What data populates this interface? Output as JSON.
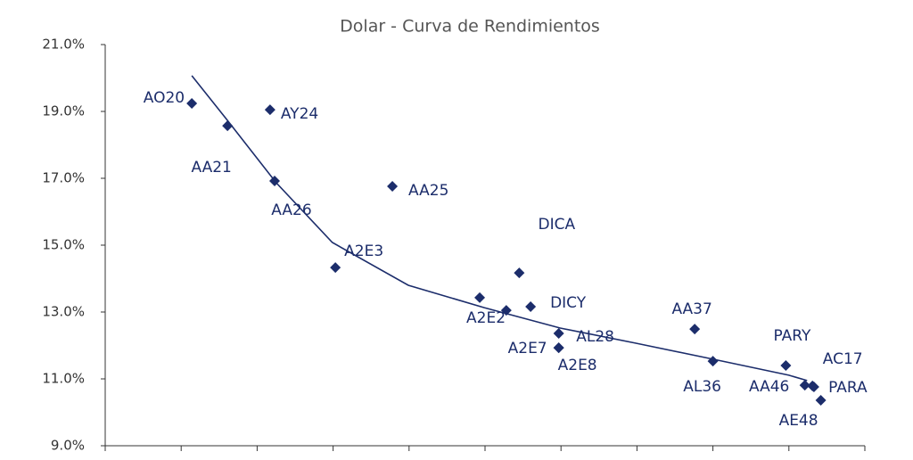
{
  "chart_data": {
    "type": "scatter",
    "title": "Dolar - Curva de Rendimientos",
    "color": "#1c2d6b",
    "points": [
      {
        "name": "AO20",
        "x": 1.14,
        "y": 19.24
      },
      {
        "name": "AA21",
        "x": 1.61,
        "y": 18.57
      },
      {
        "name": "AY24",
        "x": 2.17,
        "y": 19.05
      },
      {
        "name": "AA26",
        "x": 2.23,
        "y": 16.92
      },
      {
        "name": "AA25",
        "x": 3.78,
        "y": 16.76
      },
      {
        "name": "A2E3",
        "x": 3.03,
        "y": 14.33
      },
      {
        "name": "DICA",
        "x": 5.45,
        "y": 14.17
      },
      {
        "name": "A2E2",
        "x": 4.93,
        "y": 13.43
      },
      {
        "name": null,
        "x": 5.28,
        "y": 13.05
      },
      {
        "name": "DICY",
        "x": 5.6,
        "y": 13.16
      },
      {
        "name": "AL28",
        "x": 5.97,
        "y": 12.36
      },
      {
        "name": "A2E7",
        "x": 5.97,
        "y": 11.93
      },
      {
        "name": "A2E8",
        "x": 5.97,
        "y": 11.93
      },
      {
        "name": "AA37",
        "x": 7.76,
        "y": 12.49
      },
      {
        "name": "AL36",
        "x": 8.0,
        "y": 11.53
      },
      {
        "name": "PARY",
        "x": 8.96,
        "y": 11.4
      },
      {
        "name": "AA46",
        "x": 9.21,
        "y": 10.81
      },
      {
        "name": "AC17",
        "x": 9.31,
        "y": 10.79
      },
      {
        "name": "PARA",
        "x": 9.33,
        "y": 10.76
      },
      {
        "name": "AE48",
        "x": 9.42,
        "y": 10.36
      }
    ],
    "trend": {
      "x": [
        1.14,
        1.61,
        2.25,
        2.99,
        3.99,
        4.99,
        5.99,
        6.98,
        8.0,
        9.0,
        9.24
      ],
      "y": [
        20.07,
        18.73,
        16.87,
        15.08,
        13.8,
        13.13,
        12.52,
        12.07,
        11.59,
        11.11,
        10.95
      ]
    },
    "xlim": [
      0,
      10
    ],
    "xticks": [
      0,
      1,
      2,
      3,
      4,
      5,
      6,
      7,
      8,
      9,
      10
    ],
    "ylim": [
      9,
      21
    ],
    "yticks": [
      {
        "value": 9,
        "label": "9.0%"
      },
      {
        "value": 11,
        "label": "11.0%"
      },
      {
        "value": 13,
        "label": "13.0%"
      },
      {
        "value": 15,
        "label": "15.0%"
      },
      {
        "value": 17,
        "label": "17.0%"
      },
      {
        "value": 19,
        "label": "19.0%"
      },
      {
        "value": 21,
        "label": "21.0%"
      }
    ]
  }
}
